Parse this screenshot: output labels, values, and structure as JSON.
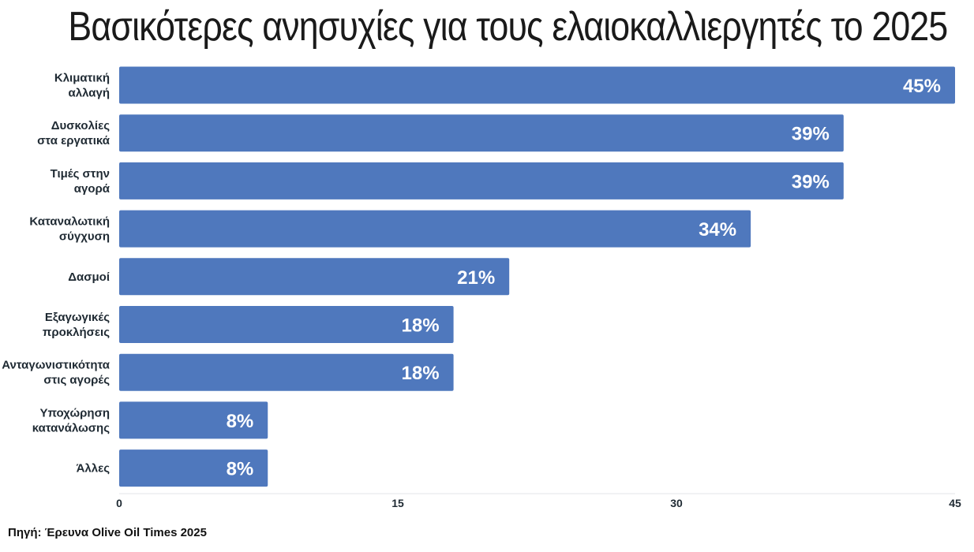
{
  "chart_data": {
    "type": "bar",
    "orientation": "horizontal",
    "title": "Βασικότερες ανησυχίες για τους ελαιοκαλλιεργητές το 2025",
    "categories": [
      [
        "Κλιματική",
        "αλλαγή"
      ],
      [
        "Δυσκολίες",
        "στα εργατικά"
      ],
      [
        "Τιμές στην",
        "αγορά"
      ],
      [
        "Καταναλωτική",
        "σύγχυση"
      ],
      [
        "Δασμοί"
      ],
      [
        "Εξαγωγικές",
        "προκλήσεις"
      ],
      [
        "Ανταγωνιστικότητα",
        "στις αγορές"
      ],
      [
        "Υποχώρηση",
        "κατανάλωσης"
      ],
      [
        "Άλλες"
      ]
    ],
    "values": [
      45,
      39,
      39,
      34,
      21,
      18,
      18,
      8,
      8
    ],
    "value_labels": [
      "45%",
      "39%",
      "39%",
      "34%",
      "21%",
      "18%",
      "18%",
      "8%",
      "8%"
    ],
    "xticks": [
      0,
      15,
      30,
      45
    ],
    "xlim": [
      0,
      45
    ],
    "bar_color": "#4f78bd",
    "grid": false,
    "legend": "none"
  },
  "source": "Πηγή: Έρευνα Olive Oil Times 2025"
}
